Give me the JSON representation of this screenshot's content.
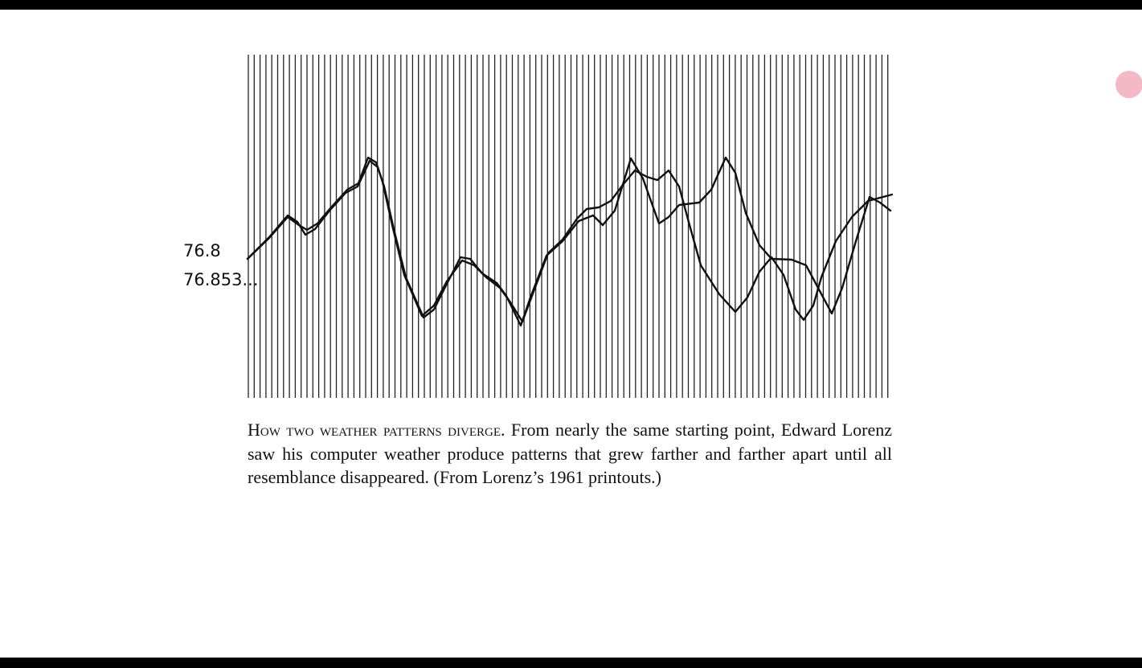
{
  "figure": {
    "annotations": [
      "76.8",
      "76.853..."
    ]
  },
  "caption": {
    "heading": "How two weather patterns diverge.",
    "body": "From nearly the same starting point, Edward Lorenz saw his computer weather produce patterns that grew farther and farther apart until all resemblance disappeared. (From Lorenz’s 1961 printouts.)"
  }
}
